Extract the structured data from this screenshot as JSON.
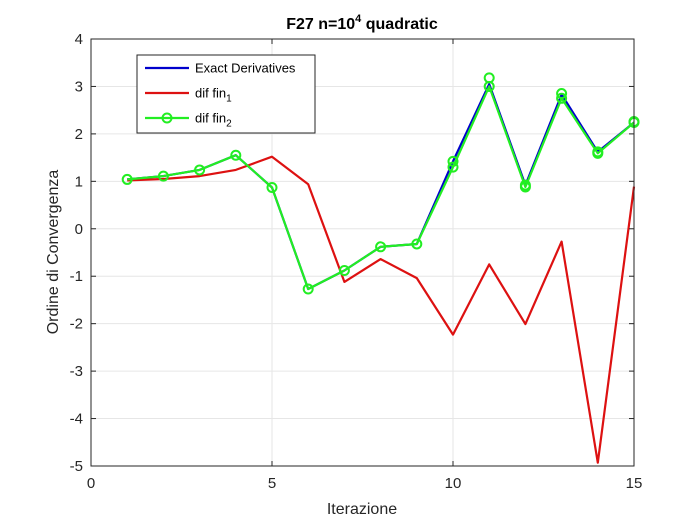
{
  "chart_data": {
    "type": "line",
    "title": {
      "prefix": "F27 n=10",
      "superscript": "4",
      "suffix": " quadratic"
    },
    "xlabel": "Iterazione",
    "ylabel": "Ordine di Convergenza",
    "xlim": [
      0,
      15
    ],
    "ylim": [
      -5,
      4
    ],
    "xticks": [
      0,
      5,
      10,
      15
    ],
    "yticks": [
      -5,
      -4,
      -3,
      -2,
      -1,
      0,
      1,
      2,
      3,
      4
    ],
    "grid": true,
    "legend_position": "top-left",
    "x": [
      1,
      2,
      3,
      4,
      5,
      6,
      7,
      8,
      9,
      10,
      11,
      12,
      13,
      14,
      15
    ],
    "series": [
      {
        "name": "Exact Derivatives",
        "legend_parts": [
          "Exact Derivatives"
        ],
        "color": "#0000cc",
        "marker": "none",
        "values": [
          1.04,
          1.11,
          1.24,
          1.55,
          0.87,
          -1.27,
          -0.88,
          -0.38,
          -0.32,
          1.42,
          3.05,
          0.92,
          2.83,
          1.62,
          2.24
        ]
      },
      {
        "name": "dif fin1",
        "legend_parts": [
          "dif fin",
          "1"
        ],
        "color": "#dd1111",
        "marker": "none",
        "values": [
          1.02,
          1.05,
          1.11,
          1.24,
          1.52,
          0.94,
          -1.12,
          -0.64,
          -1.04,
          -2.23,
          -0.75,
          -2.01,
          -0.27,
          -4.93,
          0.89
        ]
      },
      {
        "name": "dif fin2",
        "legend_parts": [
          "dif fin",
          "2"
        ],
        "color": "#22ee22",
        "marker": "circle",
        "values": [
          1.04,
          1.11,
          1.24,
          1.55,
          0.87,
          -1.27,
          -0.88,
          -0.38,
          -0.32,
          1.3,
          3.0,
          0.88,
          2.75,
          1.59,
          2.24
        ]
      }
    ],
    "extra_markers": {
      "series_index": 2,
      "points": [
        {
          "x": 10,
          "y": 1.42
        },
        {
          "x": 11,
          "y": 3.18
        },
        {
          "x": 12,
          "y": 0.92
        },
        {
          "x": 13,
          "y": 2.85
        },
        {
          "x": 14,
          "y": 1.62
        },
        {
          "x": 15,
          "y": 2.26
        }
      ]
    }
  }
}
